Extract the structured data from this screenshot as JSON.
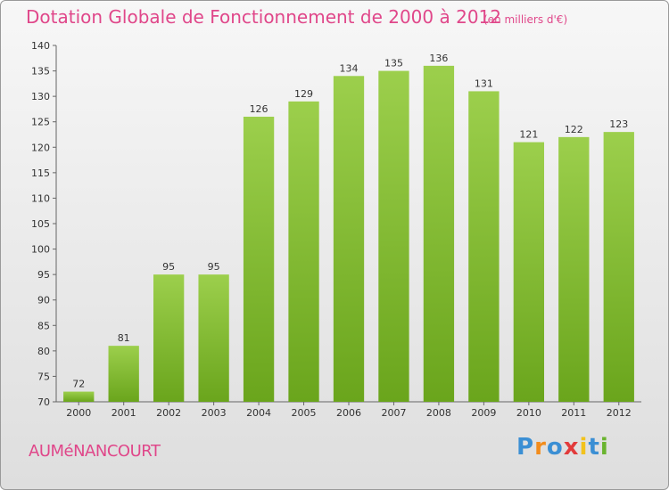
{
  "title": "Dotation Globale de Fonctionnement de 2000 à 2012",
  "subtitle": "(en milliers d'€)",
  "commune": "AUMéNANCOURT",
  "brand": {
    "letters": [
      {
        "ch": "P",
        "color": "#3b8fd4"
      },
      {
        "ch": "r",
        "color": "#f28c1c"
      },
      {
        "ch": "o",
        "color": "#3b8fd4"
      },
      {
        "ch": "x",
        "color": "#e23b3b"
      },
      {
        "ch": "i",
        "color": "#f2c21c"
      },
      {
        "ch": "t",
        "color": "#3b8fd4"
      },
      {
        "ch": "i",
        "color": "#6ab42f"
      }
    ]
  },
  "chart_data": {
    "type": "bar",
    "categories": [
      "2000",
      "2001",
      "2002",
      "2003",
      "2004",
      "2005",
      "2006",
      "2007",
      "2008",
      "2009",
      "2010",
      "2011",
      "2012"
    ],
    "values": [
      72,
      81,
      95,
      95,
      126,
      129,
      134,
      135,
      136,
      131,
      121,
      122,
      123
    ],
    "ylim": [
      70,
      140
    ],
    "yticks": [
      70,
      75,
      80,
      85,
      90,
      95,
      100,
      105,
      110,
      115,
      120,
      125,
      130,
      135,
      140
    ],
    "grid": false,
    "bar_color_top": "#9ccf4c",
    "bar_color_bottom": "#6aa51c"
  }
}
